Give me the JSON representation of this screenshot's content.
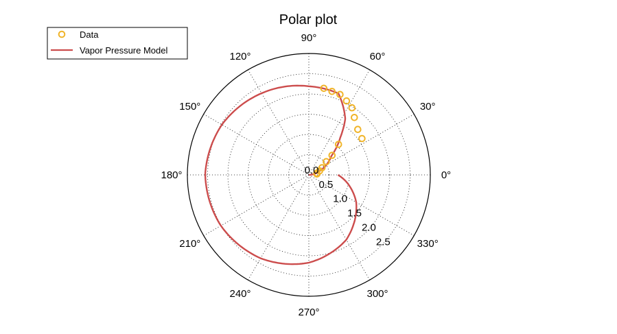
{
  "chart_data": {
    "type": "polar",
    "title": "Polar plot",
    "angle_ticks": [
      {
        "deg": 0,
        "label": "0°"
      },
      {
        "deg": 30,
        "label": "30°"
      },
      {
        "deg": 60,
        "label": "60°"
      },
      {
        "deg": 90,
        "label": "90°"
      },
      {
        "deg": 120,
        "label": "120°"
      },
      {
        "deg": 150,
        "label": "150°"
      },
      {
        "deg": 180,
        "label": "180°"
      },
      {
        "deg": 210,
        "label": "210°"
      },
      {
        "deg": 240,
        "label": "240°"
      },
      {
        "deg": 270,
        "label": "270°"
      },
      {
        "deg": 300,
        "label": "300°"
      },
      {
        "deg": 330,
        "label": "330°"
      }
    ],
    "radial_ticks": [
      {
        "r": 0.0,
        "label": "0.0"
      },
      {
        "r": 0.5,
        "label": "0.5"
      },
      {
        "r": 1.0,
        "label": "1.0"
      },
      {
        "r": 1.5,
        "label": "1.5"
      },
      {
        "r": 2.0,
        "label": "2.0"
      },
      {
        "r": 2.5,
        "label": "2.5"
      }
    ],
    "rlim": [
      0,
      3.0
    ],
    "radial_label_angle_deg": -45,
    "grid": true,
    "legend": {
      "position": "top-left",
      "entries": [
        "Data",
        "Vapor Pressure Model"
      ]
    },
    "series": [
      {
        "name": "Data",
        "style": "markers",
        "marker": "circle-open",
        "color": "#f0b429",
        "points": [
          {
            "theta_deg": 6.2,
            "r": 0.2
          },
          {
            "theta_deg": 11.5,
            "r": 0.2
          },
          {
            "theta_deg": 20.1,
            "r": 0.28
          },
          {
            "theta_deg": 28.6,
            "r": 0.37
          },
          {
            "theta_deg": 37.2,
            "r": 0.54
          },
          {
            "theta_deg": 40.1,
            "r": 0.75
          },
          {
            "theta_deg": 45.8,
            "r": 1.05
          },
          {
            "theta_deg": 34.4,
            "r": 1.59
          },
          {
            "theta_deg": 42.9,
            "r": 1.65
          },
          {
            "theta_deg": 51.6,
            "r": 1.81
          },
          {
            "theta_deg": 57.3,
            "r": 1.97
          },
          {
            "theta_deg": 63.0,
            "r": 2.05
          },
          {
            "theta_deg": 68.8,
            "r": 2.13
          },
          {
            "theta_deg": 74.5,
            "r": 2.14
          },
          {
            "theta_deg": 80.2,
            "r": 2.17
          }
        ]
      },
      {
        "name": "Vapor Pressure Model",
        "style": "line",
        "color": "#cc4c4c",
        "theta_range_deg": [
          0,
          360
        ],
        "model_points": [
          {
            "theta_deg": 0,
            "r": 0.0
          },
          {
            "theta_deg": 20,
            "r": 0.28
          },
          {
            "theta_deg": 40,
            "r": 0.73
          },
          {
            "theta_deg": 50,
            "r": 1.21
          },
          {
            "theta_deg": 57,
            "r": 1.65
          },
          {
            "theta_deg": 70,
            "r": 2.14
          },
          {
            "theta_deg": 90,
            "r": 2.19
          },
          {
            "theta_deg": 120,
            "r": 2.33
          },
          {
            "theta_deg": 150,
            "r": 2.48
          },
          {
            "theta_deg": 180,
            "r": 2.56
          },
          {
            "theta_deg": 210,
            "r": 2.51
          },
          {
            "theta_deg": 240,
            "r": 2.38
          },
          {
            "theta_deg": 270,
            "r": 2.17
          },
          {
            "theta_deg": 300,
            "r": 1.85
          },
          {
            "theta_deg": 330,
            "r": 1.35
          },
          {
            "theta_deg": 360,
            "r": 0.72
          }
        ]
      }
    ]
  }
}
